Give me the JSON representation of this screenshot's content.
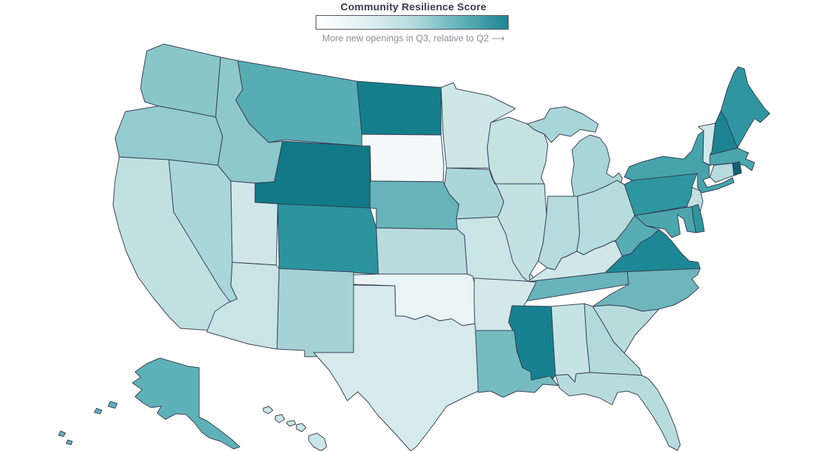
{
  "legend": {
    "title": "Community Resilience Score",
    "caption": "More new openings in Q3, relative to Q2 ⟶",
    "gradient_start_color": "#ffffff",
    "gradient_end_color": "#1e8593",
    "bar_border_color": "#4a4a55"
  },
  "map": {
    "region": "United States",
    "border_color": "#333a52",
    "background_color": "#ffffff"
  },
  "chart_data": {
    "type": "choropleth",
    "title": "Community Resilience Score",
    "legend_label": "More new openings in Q3, relative to Q2",
    "color_scale": {
      "min": "#ffffff",
      "max": "#1e8593",
      "note": "light = fewer new openings, dark = more new openings in Q3 vs Q2"
    },
    "states": [
      {
        "abbr": "WA",
        "name": "Washington",
        "fill": "#89c6ca",
        "intensity": 0.49
      },
      {
        "abbr": "OR",
        "name": "Oregon",
        "fill": "#93cbce",
        "intensity": 0.45
      },
      {
        "abbr": "CA",
        "name": "California",
        "fill": "#c0e0e1",
        "intensity": 0.24
      },
      {
        "abbr": "NV",
        "name": "Nevada",
        "fill": "#a9d6d8",
        "intensity": 0.34
      },
      {
        "abbr": "ID",
        "name": "Idaho",
        "fill": "#8dc8cc",
        "intensity": 0.47
      },
      {
        "abbr": "MT",
        "name": "Montana",
        "fill": "#58adb4",
        "intensity": 0.62
      },
      {
        "abbr": "WY",
        "name": "Wyoming",
        "fill": "#117987",
        "intensity": 0.93
      },
      {
        "abbr": "UT",
        "name": "Utah",
        "fill": "#cfe7e8",
        "intensity": 0.16
      },
      {
        "abbr": "CO",
        "name": "Colorado",
        "fill": "#2b949f",
        "intensity": 0.78
      },
      {
        "abbr": "AZ",
        "name": "Arizona",
        "fill": "#c8e4e5",
        "intensity": 0.19
      },
      {
        "abbr": "NM",
        "name": "New Mexico",
        "fill": "#a5d3d5",
        "intensity": 0.36
      },
      {
        "abbr": "ND",
        "name": "North Dakota",
        "fill": "#157e8c",
        "intensity": 0.9
      },
      {
        "abbr": "SD",
        "name": "South Dakota",
        "fill": "#f3f8f9",
        "intensity": 0.02
      },
      {
        "abbr": "NE",
        "name": "Nebraska",
        "fill": "#66b4ba",
        "intensity": 0.58
      },
      {
        "abbr": "KS",
        "name": "Kansas",
        "fill": "#b8dcdd",
        "intensity": 0.27
      },
      {
        "abbr": "OK",
        "name": "Oklahoma",
        "fill": "#ebf4f5",
        "intensity": 0.06
      },
      {
        "abbr": "TX",
        "name": "Texas",
        "fill": "#d5eaeb",
        "intensity": 0.12
      },
      {
        "abbr": "MN",
        "name": "Minnesota",
        "fill": "#cde6e7",
        "intensity": 0.16
      },
      {
        "abbr": "IA",
        "name": "Iowa",
        "fill": "#aad6d8",
        "intensity": 0.33
      },
      {
        "abbr": "MO",
        "name": "Missouri",
        "fill": "#c9e5e6",
        "intensity": 0.18
      },
      {
        "abbr": "WI",
        "name": "Wisconsin",
        "fill": "#c5e2e3",
        "intensity": 0.2
      },
      {
        "abbr": "IL",
        "name": "Illinois",
        "fill": "#c3e1e2",
        "intensity": 0.21
      },
      {
        "abbr": "MI",
        "name": "Michigan",
        "fill": "#a8d5d7",
        "intensity": 0.35
      },
      {
        "abbr": "IN",
        "name": "Indiana",
        "fill": "#b5dbdc",
        "intensity": 0.28
      },
      {
        "abbr": "OH",
        "name": "Ohio",
        "fill": "#b6dcdd",
        "intensity": 0.27
      },
      {
        "abbr": "KY",
        "name": "Kentucky",
        "fill": "#cfe7e8",
        "intensity": 0.16
      },
      {
        "abbr": "TN",
        "name": "Tennessee",
        "fill": "#68b4ba",
        "intensity": 0.57
      },
      {
        "abbr": "AR",
        "name": "Arkansas",
        "fill": "#d2e8e9",
        "intensity": 0.14
      },
      {
        "abbr": "MS",
        "name": "Mississippi",
        "fill": "#17818f",
        "intensity": 0.88
      },
      {
        "abbr": "LA",
        "name": "Louisiana",
        "fill": "#75bcc1",
        "intensity": 0.53
      },
      {
        "abbr": "AL",
        "name": "Alabama",
        "fill": "#c6e3e4",
        "intensity": 0.19
      },
      {
        "abbr": "GA",
        "name": "Georgia",
        "fill": "#b3dadb",
        "intensity": 0.29
      },
      {
        "abbr": "FL",
        "name": "Florida",
        "fill": "#b7dcdd",
        "intensity": 0.27
      },
      {
        "abbr": "SC",
        "name": "South Carolina",
        "fill": "#b8dbdc",
        "intensity": 0.27
      },
      {
        "abbr": "NC",
        "name": "North Carolina",
        "fill": "#6db6bc",
        "intensity": 0.55
      },
      {
        "abbr": "VA",
        "name": "Virginia",
        "fill": "#1e8795",
        "intensity": 0.84
      },
      {
        "abbr": "WV",
        "name": "West Virginia",
        "fill": "#58acb3",
        "intensity": 0.62
      },
      {
        "abbr": "PA",
        "name": "Pennsylvania",
        "fill": "#2e96a1",
        "intensity": 0.76
      },
      {
        "abbr": "NY",
        "name": "New York",
        "fill": "#47a3ab",
        "intensity": 0.68
      },
      {
        "abbr": "VT",
        "name": "Vermont",
        "fill": "#cfe9e9",
        "intensity": 0.15
      },
      {
        "abbr": "NH",
        "name": "New Hampshire",
        "fill": "#1c8490",
        "intensity": 0.87
      },
      {
        "abbr": "ME",
        "name": "Maine",
        "fill": "#2f96a1",
        "intensity": 0.76
      },
      {
        "abbr": "MA",
        "name": "Massachusetts",
        "fill": "#4ba6ad",
        "intensity": 0.66
      },
      {
        "abbr": "CT",
        "name": "Connecticut",
        "fill": "#b5dbdc",
        "intensity": 0.28
      },
      {
        "abbr": "RI",
        "name": "Rhode Island",
        "fill": "#0e6074",
        "intensity": 1.0
      },
      {
        "abbr": "NJ",
        "name": "New Jersey",
        "fill": "#bfdfe0",
        "intensity": 0.24
      },
      {
        "abbr": "DE",
        "name": "Delaware",
        "fill": "#2e96a1",
        "intensity": 0.76
      },
      {
        "abbr": "MD",
        "name": "Maryland",
        "fill": "#4ba6ad",
        "intensity": 0.66
      },
      {
        "abbr": "AK",
        "name": "Alaska",
        "fill": "#5fb1b8",
        "intensity": 0.6
      },
      {
        "abbr": "HI",
        "name": "Hawaii",
        "fill": "#c9e5e6",
        "intensity": 0.18
      }
    ]
  }
}
